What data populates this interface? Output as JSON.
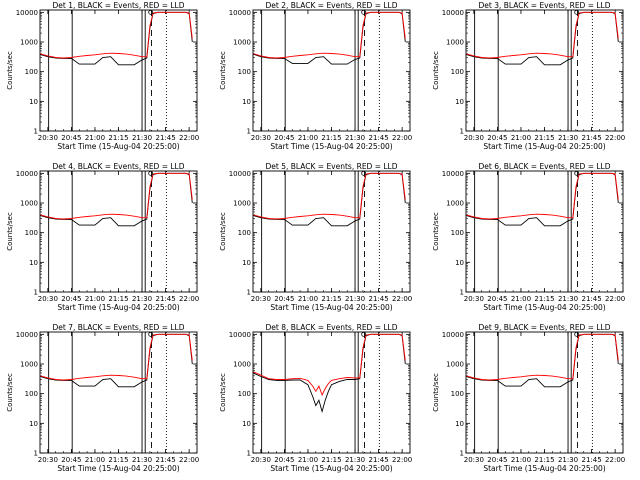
{
  "colors": {
    "background": "#ffffff",
    "axes": "#000000",
    "events": "#000000",
    "lld": "#ff0000"
  },
  "shared": {
    "xlabel": "Start Time (15-Aug-04 20:25:00)",
    "ylabel": "Counts/sec",
    "x_tick_labels": [
      "20:30",
      "20:45",
      "21:00",
      "21:15",
      "21:30",
      "21:45",
      "22:00"
    ],
    "x_tick_minutes": [
      5,
      20,
      35,
      50,
      65,
      80,
      95
    ],
    "xlim_minutes": [
      0,
      100
    ],
    "y_tick_labels": [
      "1",
      "10",
      "100",
      "1000",
      "10000"
    ],
    "y_tick_values": [
      1,
      10,
      100,
      1000,
      10000
    ],
    "ylim": [
      1,
      12000
    ],
    "yscale": "log"
  },
  "chart_data": [
    {
      "type": "line",
      "title": "Det 1, BLACK = Events, RED = LLD",
      "x": [
        0,
        5,
        10,
        15,
        20,
        25,
        30,
        35,
        40,
        45,
        50,
        55,
        60,
        65,
        68,
        70,
        72,
        75,
        80,
        85,
        90,
        93,
        95,
        97
      ],
      "series": [
        {
          "name": "Events",
          "color": "#000000",
          "values": [
            380,
            320,
            290,
            280,
            280,
            180,
            180,
            180,
            300,
            320,
            170,
            170,
            170,
            250,
            290,
            3000,
            9000,
            10000,
            10000,
            10000,
            10000,
            10000,
            9000,
            1000
          ]
        },
        {
          "name": "LLD",
          "color": "#ff0000",
          "values": [
            400,
            340,
            300,
            290,
            300,
            330,
            350,
            370,
            400,
            420,
            410,
            390,
            360,
            320,
            320,
            3500,
            9500,
            10000,
            10000,
            10000,
            10000,
            10000,
            9500,
            1300
          ]
        }
      ]
    },
    {
      "type": "line",
      "title": "Det 2, BLACK = Events, RED = LLD",
      "x": [
        0,
        5,
        10,
        15,
        20,
        25,
        30,
        35,
        40,
        45,
        50,
        55,
        60,
        65,
        68,
        70,
        72,
        75,
        80,
        85,
        90,
        93,
        95,
        97
      ],
      "series": [
        {
          "name": "Events",
          "color": "#000000",
          "values": [
            390,
            320,
            290,
            280,
            280,
            190,
            190,
            190,
            300,
            320,
            180,
            180,
            180,
            260,
            290,
            3000,
            9000,
            10000,
            10000,
            10000,
            10000,
            10000,
            9000,
            1000
          ]
        },
        {
          "name": "LLD",
          "color": "#ff0000",
          "values": [
            410,
            340,
            300,
            290,
            300,
            330,
            350,
            370,
            400,
            420,
            410,
            390,
            360,
            320,
            320,
            3500,
            9500,
            10000,
            10000,
            10000,
            10000,
            10000,
            9500,
            1300
          ]
        }
      ]
    },
    {
      "type": "line",
      "title": "Det 3, BLACK = Events, RED = LLD",
      "x": [
        0,
        5,
        10,
        15,
        20,
        25,
        30,
        35,
        40,
        45,
        50,
        55,
        60,
        65,
        68,
        70,
        72,
        75,
        80,
        85,
        90,
        93,
        95,
        97
      ],
      "series": [
        {
          "name": "Events",
          "color": "#000000",
          "values": [
            380,
            320,
            290,
            280,
            280,
            180,
            180,
            180,
            300,
            320,
            170,
            170,
            170,
            250,
            290,
            3000,
            9000,
            10000,
            10000,
            10000,
            10000,
            10000,
            9000,
            1000
          ]
        },
        {
          "name": "LLD",
          "color": "#ff0000",
          "values": [
            400,
            340,
            300,
            290,
            300,
            330,
            350,
            370,
            400,
            420,
            410,
            390,
            360,
            320,
            320,
            3500,
            9500,
            10000,
            10000,
            10000,
            10000,
            10000,
            9500,
            1300
          ]
        }
      ]
    },
    {
      "type": "line",
      "title": "Det 4, BLACK = Events, RED = LLD",
      "x": [
        0,
        5,
        10,
        15,
        20,
        25,
        30,
        35,
        40,
        45,
        50,
        55,
        60,
        65,
        68,
        70,
        72,
        75,
        80,
        85,
        90,
        93,
        95,
        97
      ],
      "series": [
        {
          "name": "Events",
          "color": "#000000",
          "values": [
            380,
            320,
            290,
            280,
            280,
            180,
            180,
            180,
            300,
            320,
            170,
            170,
            170,
            250,
            290,
            3000,
            9000,
            10000,
            10000,
            10000,
            10000,
            10000,
            9000,
            1000
          ]
        },
        {
          "name": "LLD",
          "color": "#ff0000",
          "values": [
            400,
            340,
            300,
            290,
            300,
            330,
            350,
            370,
            400,
            420,
            410,
            390,
            360,
            320,
            320,
            3500,
            9500,
            10000,
            10000,
            10000,
            10000,
            10000,
            9500,
            1300
          ]
        }
      ]
    },
    {
      "type": "line",
      "title": "Det 5, BLACK = Events, RED = LLD",
      "x": [
        0,
        5,
        10,
        15,
        20,
        25,
        30,
        35,
        40,
        45,
        50,
        55,
        60,
        65,
        68,
        70,
        72,
        75,
        80,
        85,
        90,
        93,
        95,
        97
      ],
      "series": [
        {
          "name": "Events",
          "color": "#000000",
          "values": [
            380,
            320,
            290,
            280,
            280,
            180,
            180,
            180,
            300,
            320,
            170,
            170,
            170,
            250,
            290,
            3000,
            9000,
            10000,
            10000,
            10000,
            10000,
            10000,
            9000,
            1000
          ]
        },
        {
          "name": "LLD",
          "color": "#ff0000",
          "values": [
            400,
            340,
            300,
            290,
            300,
            330,
            350,
            370,
            400,
            420,
            410,
            390,
            360,
            320,
            320,
            3500,
            9500,
            10000,
            10000,
            10000,
            10000,
            10000,
            9500,
            1300
          ]
        }
      ]
    },
    {
      "type": "line",
      "title": "Det 6, BLACK = Events, RED = LLD",
      "x": [
        0,
        5,
        10,
        15,
        20,
        25,
        30,
        35,
        40,
        45,
        50,
        55,
        60,
        65,
        68,
        70,
        72,
        75,
        80,
        85,
        90,
        93,
        95,
        97
      ],
      "series": [
        {
          "name": "Events",
          "color": "#000000",
          "values": [
            380,
            320,
            290,
            280,
            280,
            180,
            180,
            180,
            300,
            320,
            170,
            170,
            170,
            250,
            290,
            3000,
            9000,
            10000,
            10000,
            10000,
            10000,
            10000,
            9000,
            1000
          ]
        },
        {
          "name": "LLD",
          "color": "#ff0000",
          "values": [
            400,
            340,
            300,
            290,
            300,
            330,
            350,
            370,
            400,
            420,
            410,
            390,
            360,
            320,
            320,
            3500,
            9500,
            10000,
            10000,
            10000,
            10000,
            10000,
            9500,
            1300
          ]
        }
      ]
    },
    {
      "type": "line",
      "title": "Det 7, BLACK = Events, RED = LLD",
      "x": [
        0,
        5,
        10,
        15,
        20,
        25,
        30,
        35,
        40,
        45,
        50,
        55,
        60,
        65,
        68,
        70,
        72,
        75,
        80,
        85,
        90,
        93,
        95,
        97
      ],
      "series": [
        {
          "name": "Events",
          "color": "#000000",
          "values": [
            380,
            320,
            290,
            280,
            280,
            180,
            180,
            180,
            300,
            320,
            170,
            170,
            170,
            250,
            290,
            3000,
            9000,
            10000,
            10000,
            10000,
            10000,
            10000,
            9000,
            1000
          ]
        },
        {
          "name": "LLD",
          "color": "#ff0000",
          "values": [
            400,
            340,
            300,
            290,
            300,
            330,
            350,
            370,
            400,
            420,
            410,
            390,
            360,
            320,
            320,
            3500,
            9500,
            10000,
            10000,
            10000,
            10000,
            10000,
            9500,
            1300
          ]
        }
      ]
    },
    {
      "type": "line",
      "title": "Det 8, BLACK = Events, RED = LLD",
      "x": [
        0,
        5,
        10,
        15,
        20,
        25,
        30,
        35,
        38,
        40,
        42,
        44,
        46,
        48,
        50,
        55,
        60,
        65,
        68,
        70,
        72,
        75,
        80,
        85,
        90,
        93,
        95,
        97
      ],
      "series": [
        {
          "name": "Events",
          "color": "#000000",
          "values": [
            500,
            380,
            300,
            280,
            280,
            290,
            290,
            200,
            80,
            40,
            60,
            25,
            60,
            120,
            200,
            260,
            300,
            300,
            320,
            3000,
            9000,
            10000,
            10000,
            10000,
            10000,
            10000,
            9000,
            1000
          ]
        },
        {
          "name": "LLD",
          "color": "#ff0000",
          "values": [
            550,
            420,
            320,
            300,
            300,
            320,
            330,
            280,
            180,
            120,
            180,
            90,
            150,
            220,
            280,
            320,
            350,
            340,
            340,
            3500,
            9500,
            10000,
            10000,
            10000,
            10000,
            10000,
            9500,
            1300
          ]
        }
      ]
    },
    {
      "type": "line",
      "title": "Det 9, BLACK = Events, RED = LLD",
      "x": [
        0,
        5,
        10,
        15,
        20,
        25,
        30,
        35,
        40,
        45,
        50,
        55,
        60,
        65,
        68,
        70,
        72,
        75,
        80,
        85,
        90,
        93,
        95,
        97
      ],
      "series": [
        {
          "name": "Events",
          "color": "#000000",
          "values": [
            380,
            320,
            290,
            280,
            280,
            180,
            180,
            180,
            300,
            320,
            170,
            170,
            170,
            250,
            290,
            3000,
            9000,
            10000,
            10000,
            10000,
            10000,
            10000,
            9000,
            1000
          ]
        },
        {
          "name": "LLD",
          "color": "#ff0000",
          "values": [
            400,
            340,
            300,
            290,
            300,
            330,
            350,
            370,
            400,
            420,
            410,
            390,
            360,
            320,
            320,
            3500,
            9500,
            10000,
            10000,
            10000,
            10000,
            10000,
            9500,
            1300
          ]
        }
      ]
    }
  ],
  "markers": {
    "solid_minutes": [
      5.5,
      20.5,
      65,
      67
    ],
    "dashed_minutes": [
      71
    ],
    "dotted_minutes": [
      80.5
    ]
  }
}
